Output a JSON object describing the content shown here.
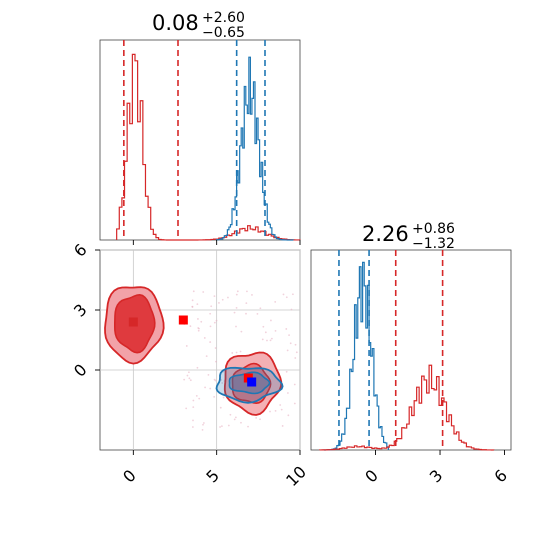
{
  "figure": {
    "titles": [
      {
        "main": "0.08",
        "plus": "+2.60",
        "minus": "−0.65"
      },
      {
        "main": "2.26",
        "plus": "+0.86",
        "minus": "−1.32"
      }
    ]
  },
  "chart_data": [
    {
      "type": "histogram",
      "panel": "top-left marginal (x parameter)",
      "xlim": [
        -2,
        10
      ],
      "series": [
        {
          "color": "#d62728",
          "peak_x": 0.1,
          "quantile_lines": [
            -0.57,
            0.08,
            2.68
          ]
        },
        {
          "color": "#1f77b4",
          "peak_x": 7.0,
          "quantile_lines": [
            6.2,
            7.9
          ]
        }
      ]
    },
    {
      "type": "scatter",
      "panel": "bottom-left joint (x vs y) contours",
      "xlim": [
        -2,
        10
      ],
      "ylim": [
        -4,
        6
      ],
      "grid": true,
      "x_ticks": [
        "0",
        "5",
        "10"
      ],
      "y_ticks": [
        "0",
        "3",
        "6"
      ],
      "series": [
        {
          "color": "#d62728",
          "contour_centers": [
            [
              0.0,
              2.4
            ],
            [
              7.0,
              -0.4
            ]
          ],
          "point_estimates": [
            [
              0.0,
              2.4
            ],
            [
              3.0,
              2.5
            ],
            [
              6.9,
              -0.4
            ]
          ]
        },
        {
          "color": "#1f77b4",
          "contour_centers": [
            [
              7.0,
              -0.6
            ]
          ],
          "point_estimates": [
            [
              7.1,
              -0.6
            ]
          ]
        }
      ],
      "markers": [
        {
          "x": 0.0,
          "y": 2.4,
          "color": "#d62728"
        },
        {
          "x": 3.0,
          "y": 2.5,
          "color": "#ff0000"
        },
        {
          "x": 6.9,
          "y": -0.4,
          "color": "#ff0000"
        },
        {
          "x": 7.1,
          "y": -0.6,
          "color": "#0000ff"
        }
      ]
    },
    {
      "type": "histogram",
      "panel": "bottom-right marginal (y parameter)",
      "xlim": [
        -3,
        6.3
      ],
      "x_ticks": [
        "0",
        "3",
        "6"
      ],
      "series": [
        {
          "color": "#1f77b4",
          "peak_x": -0.6,
          "quantile_lines": [
            -1.7,
            -0.3
          ]
        },
        {
          "color": "#d62728",
          "peak_x": 2.5,
          "quantile_lines": [
            0.94,
            3.12
          ]
        }
      ]
    }
  ]
}
